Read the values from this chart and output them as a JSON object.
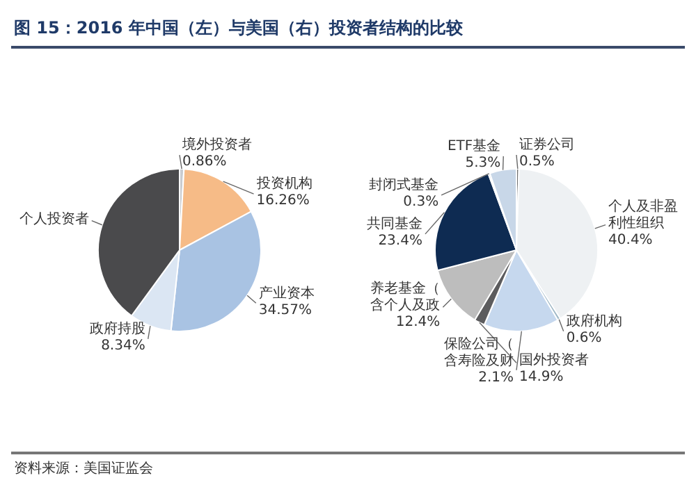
{
  "chart_data": [
    {
      "type": "pie",
      "title": "图 15：2016 年中国（左）与美国（右）投资者结构的比较",
      "annotations": [
        "资料来源：美国证监会"
      ],
      "categories": [
        "境外投资者",
        "投资机构",
        "产业资本",
        "政府持股",
        "个人投资者"
      ],
      "values": [
        0.86,
        16.26,
        34.57,
        8.34,
        39.97
      ],
      "value_labels": [
        "0.86%",
        "16.26%",
        "34.57%",
        "8.34%",
        null
      ],
      "colors": [
        "#c9ccd0",
        "#f6bb87",
        "#a9c3e3",
        "#dbe6f3",
        "#4a4a4c"
      ]
    },
    {
      "type": "pie",
      "categories": [
        "证券公司",
        "个人及非盈利性组织",
        "政府机构",
        "国外投资者",
        "保险公司（含寿险及财",
        "养老基金（含个人及政",
        "共同基金",
        "封闭式基金",
        "ETF基金"
      ],
      "values": [
        0.5,
        40.4,
        0.6,
        14.9,
        2.1,
        12.4,
        23.4,
        0.3,
        5.3
      ],
      "value_labels": [
        "0.5%",
        "40.4%",
        "0.6%",
        "14.9%",
        "2.1%",
        "12.4%",
        "23.4%",
        "0.3%",
        "5.3%"
      ],
      "colors": [
        "#6d6d6d",
        "#eef1f3",
        "#9fb8c6",
        "#c6d8ee",
        "#5c5c5e",
        "#bdbdbd",
        "#0e2b52",
        "#1f3f6b",
        "#c8d7e8"
      ]
    }
  ]
}
